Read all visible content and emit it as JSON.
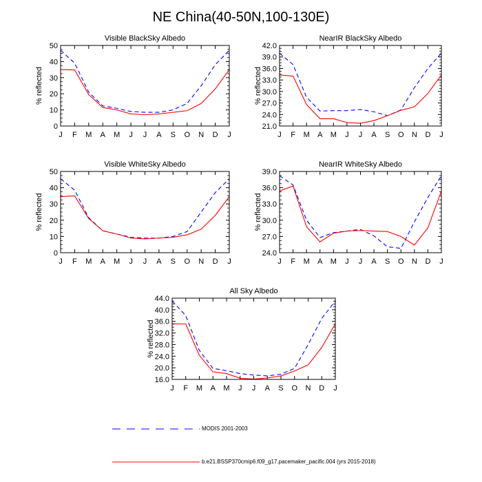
{
  "title": "NE China(40-50N,100-130E)",
  "chart_data": [
    {
      "type": "line",
      "title": "Visible BlackSky Albedo",
      "ylabel": "% reflected",
      "categories": [
        "J",
        "F",
        "M",
        "A",
        "M",
        "J",
        "J",
        "A",
        "S",
        "O",
        "N",
        "D",
        "J"
      ],
      "ylim": [
        0,
        50
      ],
      "yticks": [
        "0",
        "10",
        "20",
        "30",
        "40",
        "50"
      ],
      "series": [
        {
          "name": "MODIS 2001-2003",
          "color": "#0000ff",
          "dash": "dashed",
          "values": [
            47,
            39,
            21,
            12.5,
            11,
            9,
            8.5,
            8.5,
            10,
            14,
            25,
            38,
            47
          ]
        },
        {
          "name": "b.e21.BSSP370cmip6.f09_g17.pacemaker_pacific.004 (yrs 2015-2018)",
          "color": "#ff0000",
          "dash": "solid",
          "values": [
            35,
            34.8,
            19.5,
            11.5,
            10,
            7.5,
            7,
            7.5,
            8.5,
            9.5,
            14,
            23,
            35
          ]
        }
      ]
    },
    {
      "type": "line",
      "title": "NearIR BlackSky Albedo",
      "ylabel": "% reflected",
      "categories": [
        "J",
        "F",
        "M",
        "A",
        "M",
        "J",
        "J",
        "A",
        "S",
        "O",
        "N",
        "D",
        "J"
      ],
      "ylim": [
        21,
        42
      ],
      "yticks": [
        "21.0",
        "24.0",
        "27.0",
        "30.0",
        "33.0",
        "36.0",
        "39.0",
        "42.0"
      ],
      "series": [
        {
          "name": "MODIS 2001-2003",
          "color": "#0000ff",
          "dash": "dashed",
          "values": [
            40,
            37,
            28.5,
            24.9,
            25,
            25,
            25.3,
            24.7,
            23.7,
            25.2,
            31,
            36,
            40
          ]
        },
        {
          "name": "b.e21.BSSP370cmip6.f09_g17.pacemaker_pacific.004 (yrs 2015-2018)",
          "color": "#ff0000",
          "dash": "solid",
          "values": [
            34.3,
            34,
            26.6,
            22.9,
            22.9,
            21.9,
            21.7,
            22.4,
            23.7,
            25.1,
            26,
            29.5,
            34.3
          ]
        }
      ]
    },
    {
      "type": "line",
      "title": "Visible WhiteSky Albedo",
      "ylabel": "% reflected",
      "categories": [
        "J",
        "F",
        "M",
        "A",
        "M",
        "J",
        "J",
        "A",
        "S",
        "O",
        "N",
        "D",
        "J"
      ],
      "ylim": [
        0,
        50
      ],
      "yticks": [
        "0",
        "10",
        "20",
        "30",
        "40",
        "50"
      ],
      "series": [
        {
          "name": "MODIS 2001-2003",
          "color": "#0000ff",
          "dash": "dashed",
          "values": [
            45.5,
            38.5,
            21.5,
            13.5,
            11.5,
            9.5,
            9,
            9,
            10,
            13,
            25,
            37,
            45.5
          ]
        },
        {
          "name": "b.e21.BSSP370cmip6.f09_g17.pacemaker_pacific.004 (yrs 2015-2018)",
          "color": "#ff0000",
          "dash": "solid",
          "values": [
            34.5,
            35,
            21,
            13.5,
            11.5,
            9,
            8.5,
            9,
            9.5,
            11,
            14.5,
            23,
            34.5
          ]
        }
      ]
    },
    {
      "type": "line",
      "title": "NearIR WhiteSky Albedo",
      "ylabel": "% reflected",
      "categories": [
        "J",
        "F",
        "M",
        "A",
        "M",
        "J",
        "J",
        "A",
        "S",
        "O",
        "N",
        "D",
        "J"
      ],
      "ylim": [
        24,
        39
      ],
      "yticks": [
        "24.0",
        "27.0",
        "30.0",
        "33.0",
        "36.0",
        "39.0"
      ],
      "series": [
        {
          "name": "MODIS 2001-2003",
          "color": "#0000ff",
          "dash": "dashed",
          "values": [
            38.2,
            36.5,
            30,
            26.8,
            27.7,
            28,
            28.3,
            27.1,
            25.1,
            24.8,
            29.7,
            34.2,
            38.2
          ]
        },
        {
          "name": "b.e21.BSSP370cmip6.f09_g17.pacemaker_pacific.004 (yrs 2015-2018)",
          "color": "#ff0000",
          "dash": "solid",
          "values": [
            35.4,
            36.3,
            28.8,
            26,
            27.6,
            28,
            28.1,
            28,
            27.9,
            27,
            25.4,
            28.6,
            35.4
          ]
        }
      ]
    },
    {
      "type": "line",
      "title": "All Sky Albedo",
      "ylabel": "% reflected",
      "categories": [
        "J",
        "F",
        "M",
        "A",
        "M",
        "J",
        "J",
        "A",
        "S",
        "O",
        "N",
        "D",
        "J"
      ],
      "ylim": [
        16,
        44
      ],
      "yticks": [
        "16.0",
        "20.0",
        "24.0",
        "28.0",
        "32.0",
        "36.0",
        "40.0",
        "44.0"
      ],
      "series": [
        {
          "name": "MODIS 2001-2003",
          "color": "#0000ff",
          "dash": "dashed",
          "values": [
            43,
            38,
            26,
            19.8,
            19,
            18,
            17.5,
            17.2,
            17.8,
            19.8,
            28,
            37,
            43
          ]
        },
        {
          "name": "b.e21.BSSP370cmip6.f09_g17.pacemaker_pacific.004 (yrs 2015-2018)",
          "color": "#ff0000",
          "dash": "solid",
          "values": [
            35.2,
            35.1,
            24.3,
            18.6,
            18,
            16.4,
            16.1,
            16.5,
            17.2,
            18.9,
            21,
            27,
            35.2
          ]
        }
      ]
    }
  ],
  "legend": [
    {
      "label": "MODIS 2001-2003",
      "color": "#0000ff",
      "dash": "dashed"
    },
    {
      "label": "b.e21.BSSP370cmip6.f09_g17.pacemaker_pacific.004 (yrs 2015-2018)",
      "color": "#ff0000",
      "dash": "solid"
    }
  ]
}
